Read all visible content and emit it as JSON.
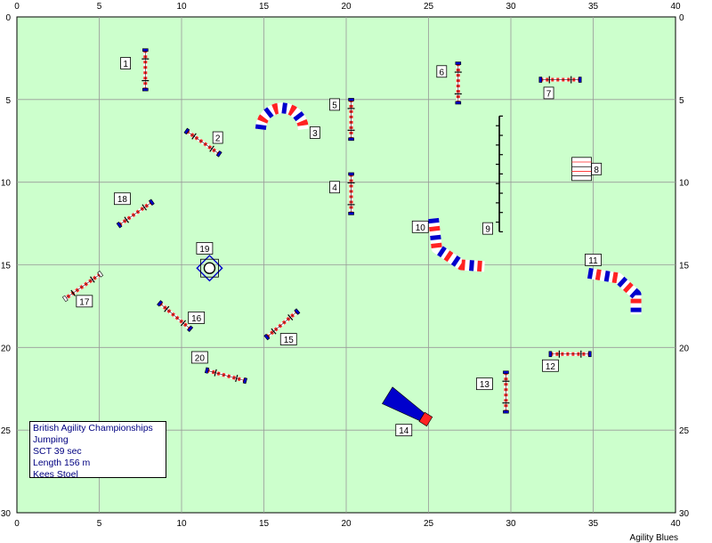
{
  "course": {
    "width_m": 40,
    "height_m": 30,
    "x_ticks": [
      0,
      5,
      10,
      15,
      20,
      25,
      30,
      35,
      40
    ],
    "y_ticks": [
      0,
      5,
      10,
      15,
      20,
      25,
      30
    ],
    "colors": {
      "field": "#ccffcc",
      "grid": "#999999",
      "bar_blue": "#0000cc",
      "bar_red": "#ff2222",
      "border": "#000000"
    }
  },
  "info": {
    "line1": "British Agility Championships",
    "line2": "Jumping",
    "line3": "SCT 39 sec",
    "line4": "Length 156 m",
    "line5": "Kees Stoel"
  },
  "credit": "Agility Blues",
  "obstacles": [
    {
      "num": "1",
      "type": "hurdle",
      "x": 7.8,
      "y": 3.2,
      "angle": 90,
      "len": 2.4,
      "label_at": [
        6.6,
        2.8
      ]
    },
    {
      "num": "2",
      "type": "hurdle",
      "x": 11.3,
      "y": 7.6,
      "angle": 35,
      "len": 2.4,
      "label_at": [
        12.2,
        7.3
      ]
    },
    {
      "num": "3",
      "type": "tunnel",
      "center": [
        16.1,
        6.8
      ],
      "r": 1.3,
      "start": 180,
      "end": 360,
      "label_at": [
        18.1,
        7.0
      ]
    },
    {
      "num": "4",
      "type": "hurdle",
      "x": 20.3,
      "y": 10.7,
      "angle": 90,
      "len": 2.4,
      "label_at": [
        19.3,
        10.3
      ]
    },
    {
      "num": "5",
      "type": "hurdle",
      "x": 20.3,
      "y": 6.2,
      "angle": 90,
      "len": 2.4,
      "label_at": [
        19.3,
        5.3
      ]
    },
    {
      "num": "6",
      "type": "hurdle",
      "x": 26.8,
      "y": 4.0,
      "angle": 90,
      "len": 2.4,
      "label_at": [
        25.8,
        3.3
      ]
    },
    {
      "num": "7",
      "type": "hurdle",
      "x": 33.0,
      "y": 3.8,
      "angle": 0,
      "len": 2.4,
      "label_at": [
        32.3,
        4.6
      ]
    },
    {
      "num": "8",
      "type": "table",
      "x": 34.3,
      "y": 9.2,
      "label_at": [
        35.2,
        9.2
      ]
    },
    {
      "num": "9",
      "type": "weaves",
      "x": 29.3,
      "y1": 6.0,
      "y2": 13.0,
      "label_at": [
        28.6,
        12.8
      ]
    },
    {
      "num": "10",
      "type": "tunnel_s",
      "points": [
        [
          25.3,
          12.2
        ],
        [
          25.5,
          14.0
        ],
        [
          27.0,
          15.0
        ],
        [
          28.4,
          15.1
        ]
      ],
      "label_at": [
        24.5,
        12.7
      ]
    },
    {
      "num": "11",
      "type": "tunnel_s",
      "points": [
        [
          34.7,
          15.5
        ],
        [
          36.5,
          15.8
        ],
        [
          37.6,
          16.8
        ],
        [
          37.6,
          18.0
        ]
      ],
      "label_at": [
        35.0,
        14.7
      ]
    },
    {
      "num": "12",
      "type": "hurdle",
      "x": 33.6,
      "y": 20.4,
      "angle": 0,
      "len": 2.4,
      "label_at": [
        32.4,
        21.1
      ]
    },
    {
      "num": "13",
      "type": "hurdle",
      "x": 29.7,
      "y": 22.7,
      "angle": 90,
      "len": 2.4,
      "label_at": [
        28.4,
        22.2
      ]
    },
    {
      "num": "14",
      "type": "chute",
      "from": [
        22.5,
        22.9
      ],
      "to": [
        24.6,
        24.2
      ],
      "label_at": [
        23.5,
        25.0
      ]
    },
    {
      "num": "15",
      "type": "hurdle",
      "x": 16.1,
      "y": 18.6,
      "angle": -40,
      "len": 2.4,
      "label_at": [
        16.5,
        19.5
      ]
    },
    {
      "num": "16",
      "type": "hurdle",
      "x": 9.6,
      "y": 18.1,
      "angle": 40,
      "len": 2.4,
      "label_at": [
        10.9,
        18.2
      ]
    },
    {
      "num": "17",
      "type": "hurdle_white",
      "x": 4.0,
      "y": 16.3,
      "angle": -35,
      "len": 2.6,
      "label_at": [
        4.1,
        17.2
      ]
    },
    {
      "num": "18",
      "type": "hurdle",
      "x": 7.2,
      "y": 11.9,
      "angle": -35,
      "len": 2.4,
      "label_at": [
        6.4,
        11.0
      ]
    },
    {
      "num": "19",
      "type": "tyre",
      "x": 11.7,
      "y": 15.2,
      "label_at": [
        11.4,
        14.0
      ]
    },
    {
      "num": "20",
      "type": "hurdle",
      "x": 12.7,
      "y": 21.7,
      "angle": 15,
      "len": 2.4,
      "label_at": [
        11.1,
        20.6
      ]
    }
  ]
}
